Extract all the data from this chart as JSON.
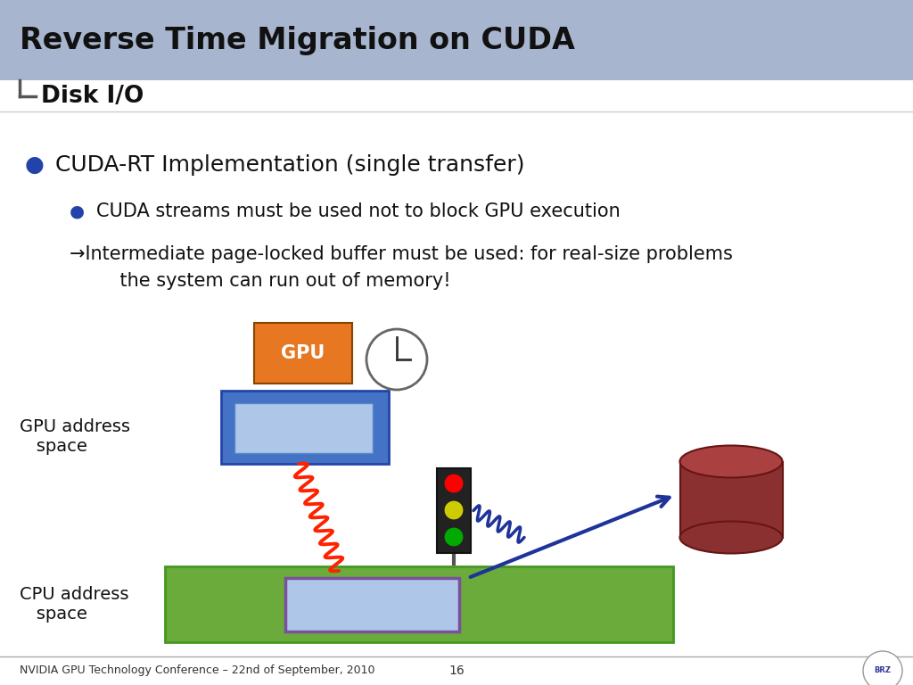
{
  "title": "Reverse Time Migration on CUDA",
  "subtitle": "Disk I/O",
  "bullet1": "CUDA-RT Implementation (single transfer)",
  "bullet2": "CUDA streams must be used not to block GPU execution",
  "arrow_text1": "→Intermediate page-locked buffer must be used: for real-size problems",
  "arrow_text2": "    the system can run out of memory!",
  "label_gpu_space": "GPU address\n   space",
  "label_cpu_space": "CPU address\n   space",
  "footer_left": "NVIDIA GPU Technology Conference – 22nd of September, 2010",
  "footer_page": "16",
  "bg_color": "#ffffff",
  "header_bg": "#8a9cc0",
  "title_color": "#1a1a1a",
  "subtitle_color": "#222222",
  "gpu_chip_color": "#E87722",
  "gpu_board_color": "#4472C4",
  "gpu_mem_color": "#AEC6E8",
  "cpu_board_color": "#6AAB3C",
  "cpu_mem_color": "#AEC6E8",
  "cpu_mem_border": "#7B4FA0",
  "disk_color": "#8B3030",
  "disk_top_color": "#AA4040",
  "traffic_bg": "#222222",
  "red_light": "#FF0000",
  "yellow_light": "#CCCC00",
  "green_light": "#00AA00",
  "arrow_color": "#1F3399",
  "wavy_red_color": "#FF2200",
  "wavy_blue_color": "#1F3399",
  "bullet_color": "#2244AA"
}
